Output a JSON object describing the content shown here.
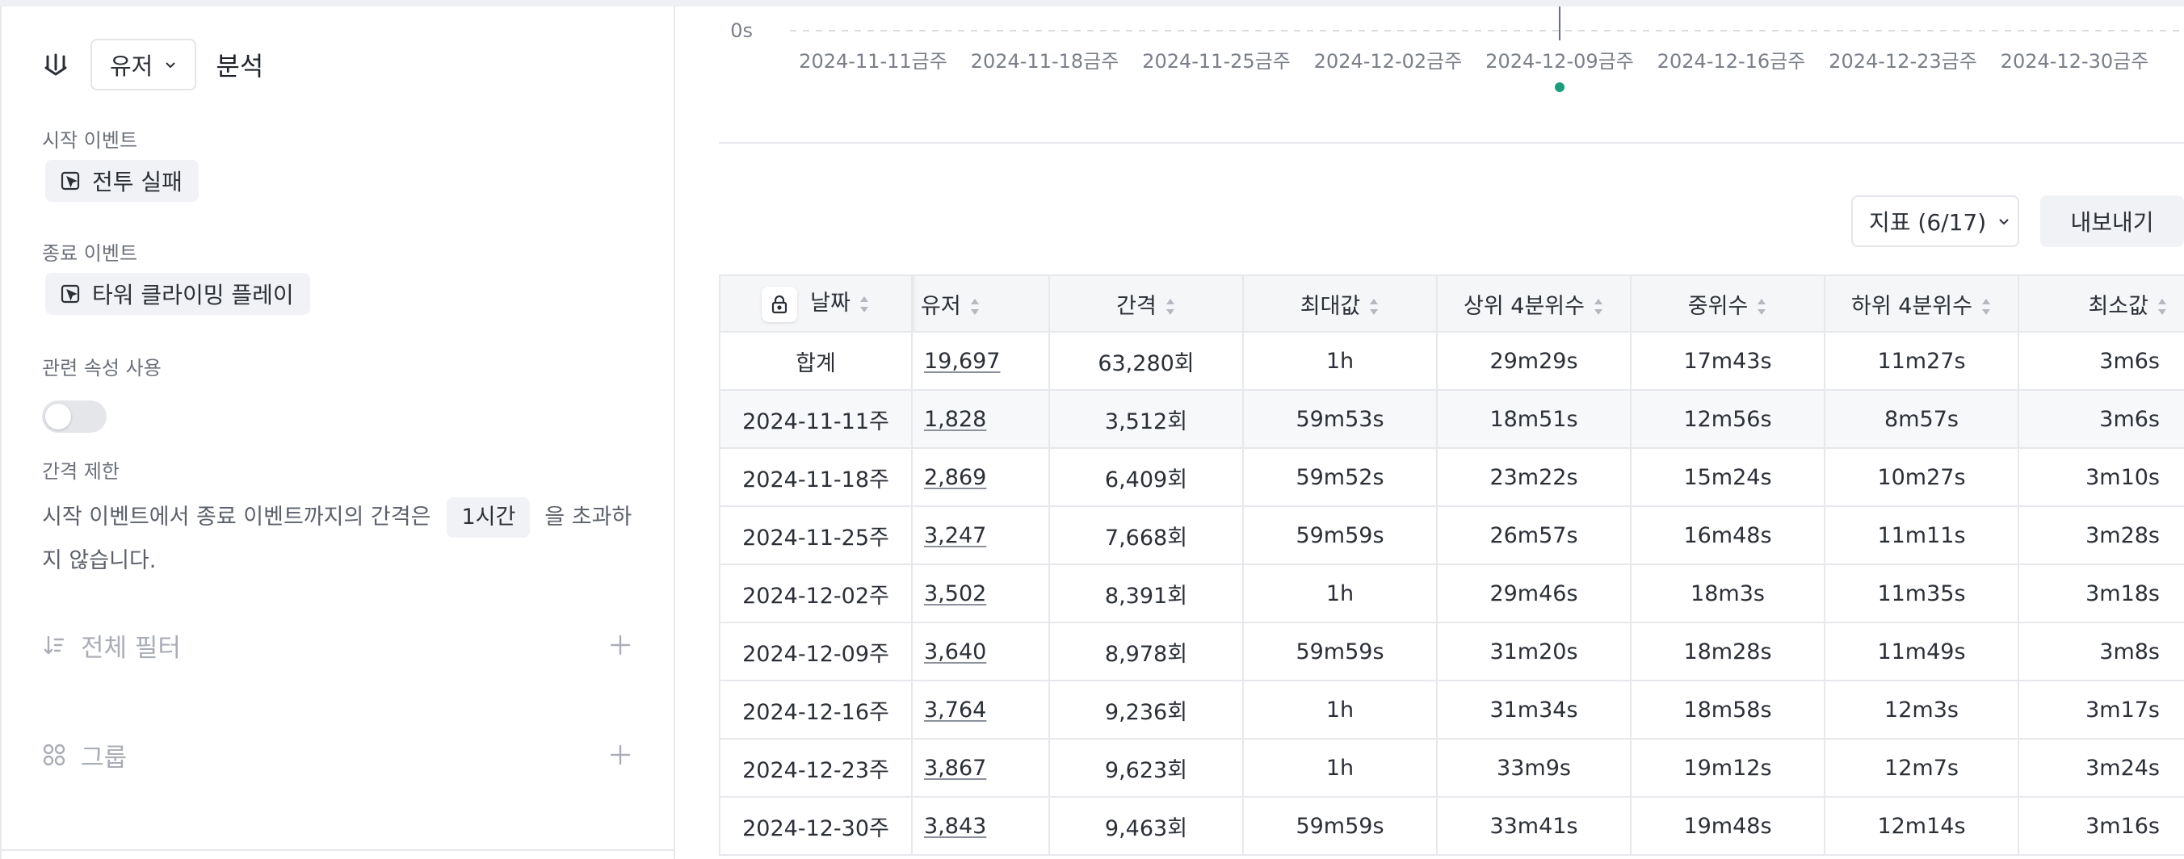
{
  "header": {
    "user_select": "유저",
    "title": "분석"
  },
  "start_event": {
    "label": "시작 이벤트",
    "value": "전투 실패"
  },
  "end_event": {
    "label": "종료 이벤트",
    "value": "타워 클라이밍 플레이"
  },
  "related_props": {
    "label": "관련 속성 사용",
    "enabled": false
  },
  "interval_limit": {
    "label": "간격 제한",
    "text_before": "시작 이벤트에서 종료 이벤트까지의 간격은",
    "value": "1시간",
    "text_after": "을 초과하지 않습니다."
  },
  "filter_section": {
    "label": "전체 필터"
  },
  "group_section": {
    "label": "그룹"
  },
  "chart": {
    "y_tick": "0s",
    "x_ticks": [
      "2024-11-11금주",
      "2024-11-18금주",
      "2024-11-25금주",
      "2024-12-02금주",
      "2024-12-09금주",
      "2024-12-16금주",
      "2024-12-23금주",
      "2024-12-30금주"
    ],
    "highlight_index": 4,
    "marker_color": "#1a9e7a"
  },
  "toolbar": {
    "metrics_select": "지표 (6/17)",
    "export_label": "내보내기"
  },
  "table": {
    "columns": [
      "날짜",
      "유저",
      "간격",
      "최대값",
      "상위 4분위수",
      "중위수",
      "하위 4분위수",
      "최소값"
    ],
    "rows": [
      [
        "합계",
        "19,697",
        "63,280회",
        "1h",
        "29m29s",
        "17m43s",
        "11m27s",
        "3m6s"
      ],
      [
        "2024-11-11주",
        "1,828",
        "3,512회",
        "59m53s",
        "18m51s",
        "12m56s",
        "8m57s",
        "3m6s"
      ],
      [
        "2024-11-18주",
        "2,869",
        "6,409회",
        "59m52s",
        "23m22s",
        "15m24s",
        "10m27s",
        "3m10s"
      ],
      [
        "2024-11-25주",
        "3,247",
        "7,668회",
        "59m59s",
        "26m57s",
        "16m48s",
        "11m11s",
        "3m28s"
      ],
      [
        "2024-12-02주",
        "3,502",
        "8,391회",
        "1h",
        "29m46s",
        "18m3s",
        "11m35s",
        "3m18s"
      ],
      [
        "2024-12-09주",
        "3,640",
        "8,978회",
        "59m59s",
        "31m20s",
        "18m28s",
        "11m49s",
        "3m8s"
      ],
      [
        "2024-12-16주",
        "3,764",
        "9,236회",
        "1h",
        "31m34s",
        "18m58s",
        "12m3s",
        "3m17s"
      ],
      [
        "2024-12-23주",
        "3,867",
        "9,623회",
        "1h",
        "33m9s",
        "19m12s",
        "12m7s",
        "3m24s"
      ],
      [
        "2024-12-30주",
        "3,843",
        "9,463회",
        "59m59s",
        "33m41s",
        "19m48s",
        "12m14s",
        "3m16s"
      ]
    ]
  }
}
